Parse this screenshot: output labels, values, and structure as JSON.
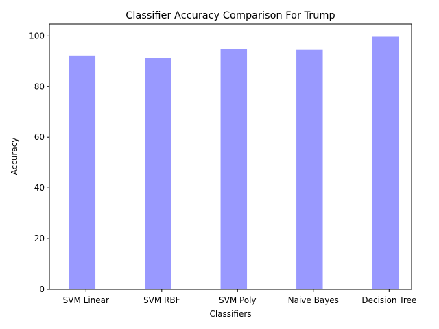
{
  "chart_data": {
    "type": "bar",
    "title": "Classifier Accuracy Comparison For Trump",
    "xlabel": "Classifiers",
    "ylabel": "Accuracy",
    "categories": [
      "SVM Linear",
      "SVM RBF",
      "SVM Poly",
      "Naive Bayes",
      "Decision Tree"
    ],
    "series": [
      {
        "values": [
          92.3,
          91.2,
          94.8,
          94.5,
          99.7
        ],
        "color": "#9999ff"
      }
    ],
    "ylim": [
      0,
      104.7
    ],
    "yticks": [
      0,
      20,
      40,
      60,
      80,
      100
    ],
    "grid": false,
    "legend": "none"
  }
}
